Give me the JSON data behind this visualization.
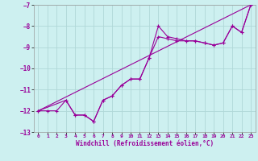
{
  "title": "",
  "xlabel": "Windchill (Refroidissement éolien,°C)",
  "bg_color": "#cdf0f0",
  "line_color": "#990099",
  "grid_color": "#b0d8d8",
  "xlim": [
    -0.5,
    23.5
  ],
  "ylim": [
    -13.0,
    -7.0
  ],
  "yticks": [
    -13,
    -12,
    -11,
    -10,
    -9,
    -8,
    -7
  ],
  "xticks": [
    0,
    1,
    2,
    3,
    4,
    5,
    6,
    7,
    8,
    9,
    10,
    11,
    12,
    13,
    14,
    15,
    16,
    17,
    18,
    19,
    20,
    21,
    22,
    23
  ],
  "line1_x": [
    0,
    1,
    2,
    3,
    4,
    5,
    6,
    7,
    8,
    9,
    10,
    11,
    12,
    13,
    14,
    15,
    16,
    17,
    18,
    19,
    20,
    21,
    22,
    23
  ],
  "line1_y": [
    -12.0,
    -12.0,
    -12.0,
    -11.5,
    -12.2,
    -12.2,
    -12.5,
    -11.5,
    -11.3,
    -10.8,
    -10.5,
    -10.5,
    -9.5,
    -8.0,
    -8.5,
    -8.6,
    -8.7,
    -8.7,
    -8.8,
    -8.9,
    -8.8,
    -8.0,
    -8.3,
    -7.0
  ],
  "line2_x": [
    0,
    3,
    4,
    5,
    6,
    7,
    8,
    9,
    10,
    11,
    12,
    13,
    14,
    15,
    16,
    17,
    18,
    19,
    20,
    21,
    22,
    23
  ],
  "line2_y": [
    -12.0,
    -11.5,
    -12.2,
    -12.2,
    -12.5,
    -11.5,
    -11.3,
    -10.8,
    -10.5,
    -10.5,
    -9.5,
    -8.5,
    -8.6,
    -8.7,
    -8.7,
    -8.7,
    -8.8,
    -8.9,
    -8.8,
    -8.0,
    -8.3,
    -7.0
  ],
  "line3_x": [
    0,
    23
  ],
  "line3_y": [
    -12.0,
    -7.0
  ]
}
